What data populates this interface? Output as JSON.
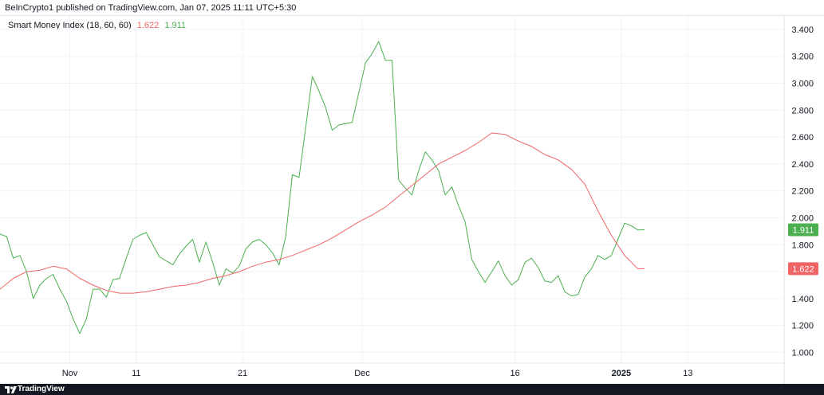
{
  "header": {
    "publish_text": "BeInCrypto1 published on TradingView.com, Jan 07, 2025 11:11 UTC+5:30"
  },
  "footer": {
    "logo_text": "TradingView"
  },
  "colors": {
    "green_line": "#4caf50",
    "red_line": "#f06464",
    "grid": "#f0f3fa",
    "axis_text": "#131722"
  },
  "chart_data": {
    "type": "line",
    "indicator": "Smart Money Index (18, 60, 60)",
    "legend_values": {
      "red": "1.622",
      "green": "1.911"
    },
    "y_ticks": [
      "3.400",
      "3.200",
      "3.000",
      "2.800",
      "2.600",
      "2.400",
      "2.200",
      "2.000",
      "1.800",
      "1.600",
      "1.400",
      "1.200",
      "1.000"
    ],
    "x_ticks": [
      {
        "label": "Nov",
        "bar": 10.5,
        "bold": false
      },
      {
        "label": "11",
        "bar": 20.5,
        "bold": false
      },
      {
        "label": "21",
        "bar": 36.5,
        "bold": false
      },
      {
        "label": "Dec",
        "bar": 54.5,
        "bold": false
      },
      {
        "label": "16",
        "bar": 77.5,
        "bold": false
      },
      {
        "label": "2025",
        "bar": 93.5,
        "bold": true
      },
      {
        "label": "13",
        "bar": 103.5,
        "bold": false
      }
    ],
    "ylim": [
      0.92,
      3.5
    ],
    "xlim": [
      0,
      118
    ],
    "price_labels": [
      {
        "value": 1.911,
        "text": "1.911",
        "color": "#4caf50"
      },
      {
        "value": 1.622,
        "text": "1.622",
        "color": "#f06464"
      }
    ],
    "series": [
      {
        "color": "#4caf50",
        "x": [
          0,
          1,
          2,
          3,
          4,
          5,
          6,
          7,
          8,
          9,
          10,
          11,
          12,
          13,
          14,
          15,
          16,
          17,
          18,
          19,
          20,
          21,
          22,
          23,
          24,
          25,
          26,
          27,
          28,
          29,
          30,
          31,
          32,
          33,
          34,
          35,
          36,
          37,
          38,
          39,
          40,
          41,
          42,
          43,
          44,
          45,
          46,
          47,
          48,
          49,
          50,
          51,
          52,
          53,
          54,
          55,
          56,
          57,
          58,
          59,
          60,
          61,
          62,
          63,
          64,
          65,
          66,
          67,
          68,
          69,
          70,
          71,
          72,
          73,
          74,
          75,
          76,
          77,
          78,
          79,
          80,
          81,
          82,
          83,
          84,
          85,
          86,
          87,
          88,
          89,
          90,
          91,
          92,
          93,
          94,
          95,
          96,
          97
        ],
        "values": [
          1.88,
          1.86,
          1.7,
          1.72,
          1.6,
          1.4,
          1.5,
          1.55,
          1.58,
          1.47,
          1.38,
          1.25,
          1.14,
          1.25,
          1.47,
          1.47,
          1.41,
          1.54,
          1.55,
          1.7,
          1.84,
          1.87,
          1.89,
          1.8,
          1.71,
          1.68,
          1.65,
          1.73,
          1.79,
          1.84,
          1.67,
          1.82,
          1.67,
          1.5,
          1.62,
          1.59,
          1.64,
          1.77,
          1.82,
          1.84,
          1.8,
          1.74,
          1.65,
          1.86,
          2.32,
          2.3,
          2.67,
          3.05,
          2.94,
          2.82,
          2.65,
          2.69,
          2.7,
          2.71,
          2.93,
          3.15,
          3.22,
          3.31,
          3.17,
          3.17,
          2.28,
          2.22,
          2.17,
          2.35,
          2.49,
          2.43,
          2.35,
          2.17,
          2.23,
          2.09,
          1.97,
          1.69,
          1.6,
          1.52,
          1.6,
          1.68,
          1.57,
          1.5,
          1.54,
          1.67,
          1.7,
          1.63,
          1.53,
          1.52,
          1.57,
          1.45,
          1.42,
          1.43,
          1.56,
          1.62,
          1.72,
          1.69,
          1.72,
          1.84,
          1.96,
          1.94,
          1.91,
          1.911
        ]
      },
      {
        "color": "#f06464",
        "x": [
          0,
          2,
          4,
          6,
          8,
          10,
          12,
          14,
          16,
          18,
          20,
          22,
          24,
          26,
          28,
          30,
          32,
          34,
          36,
          38,
          40,
          42,
          44,
          46,
          48,
          50,
          52,
          54,
          56,
          58,
          60,
          62,
          64,
          66,
          68,
          70,
          72,
          74,
          76,
          78,
          80,
          82,
          84,
          86,
          88,
          90,
          92,
          94,
          96,
          97
        ],
        "values": [
          1.47,
          1.55,
          1.6,
          1.61,
          1.64,
          1.62,
          1.55,
          1.5,
          1.46,
          1.44,
          1.44,
          1.45,
          1.47,
          1.49,
          1.5,
          1.52,
          1.55,
          1.57,
          1.6,
          1.64,
          1.67,
          1.69,
          1.72,
          1.76,
          1.8,
          1.85,
          1.91,
          1.97,
          2.02,
          2.08,
          2.16,
          2.24,
          2.32,
          2.4,
          2.45,
          2.5,
          2.56,
          2.63,
          2.62,
          2.57,
          2.53,
          2.47,
          2.43,
          2.36,
          2.25,
          2.05,
          1.87,
          1.72,
          1.62,
          1.622
        ]
      }
    ]
  }
}
